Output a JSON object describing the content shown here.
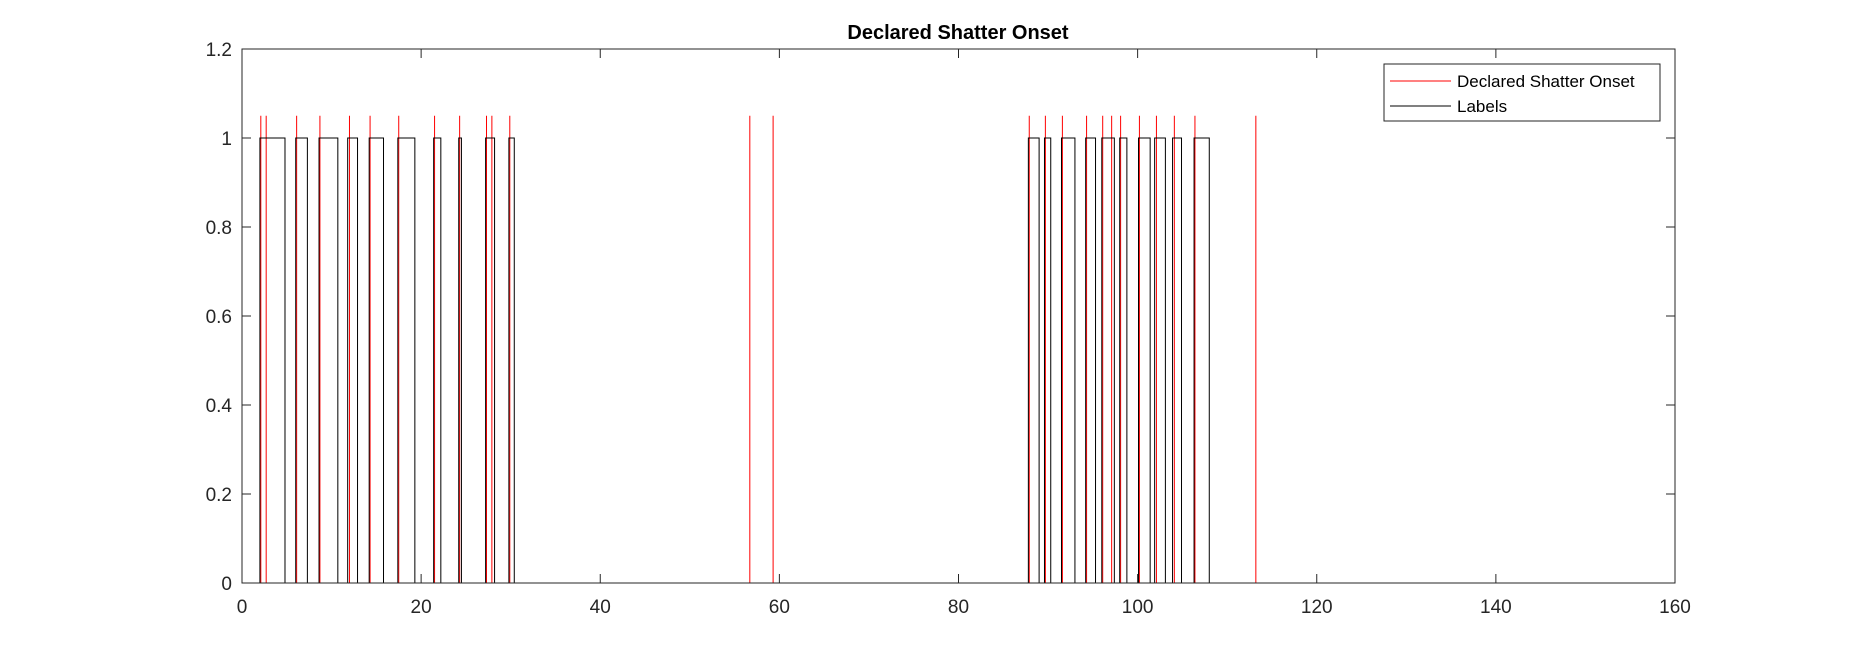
{
  "chart_data": {
    "type": "line",
    "title": "Declared Shatter Onset",
    "xlabel": "",
    "ylabel": "",
    "xlim": [
      0,
      160
    ],
    "ylim": [
      0,
      1.2
    ],
    "xticks": [
      "0",
      "20",
      "40",
      "60",
      "80",
      "100",
      "120",
      "140",
      "160"
    ],
    "yticks": [
      "0",
      "0.2",
      "0.4",
      "0.6",
      "0.8",
      "1",
      "1.2"
    ],
    "grid": false,
    "legend_position": "top-right",
    "series": [
      {
        "name": "Declared Shatter Onset",
        "color": "#ff0000",
        "kind": "impulses",
        "height": 1.05,
        "x_end": 152,
        "x": [
          2.1,
          2.7,
          6.1,
          8.7,
          12.0,
          14.3,
          17.5,
          21.5,
          24.3,
          27.3,
          27.9,
          29.9,
          56.7,
          59.3,
          87.9,
          89.7,
          91.6,
          94.3,
          96.1,
          97.1,
          98.1,
          100.2,
          102.1,
          104.1,
          106.4,
          113.2
        ]
      },
      {
        "name": "Labels",
        "color": "#000000",
        "kind": "step",
        "x_end": 152,
        "pulses": [
          [
            2.0,
            4.8
          ],
          [
            6.0,
            7.3
          ],
          [
            8.6,
            10.7
          ],
          [
            11.8,
            12.9
          ],
          [
            14.2,
            15.8
          ],
          [
            17.4,
            19.3
          ],
          [
            21.4,
            22.2
          ],
          [
            24.2,
            24.5
          ],
          [
            27.2,
            28.2
          ],
          [
            29.8,
            30.4
          ],
          [
            87.8,
            89.0
          ],
          [
            89.6,
            90.3
          ],
          [
            91.5,
            93.0
          ],
          [
            94.2,
            95.3
          ],
          [
            96.0,
            97.4
          ],
          [
            98.0,
            98.8
          ],
          [
            100.1,
            101.4
          ],
          [
            101.9,
            103.1
          ],
          [
            103.9,
            104.9
          ],
          [
            106.3,
            108.0
          ]
        ]
      }
    ]
  }
}
